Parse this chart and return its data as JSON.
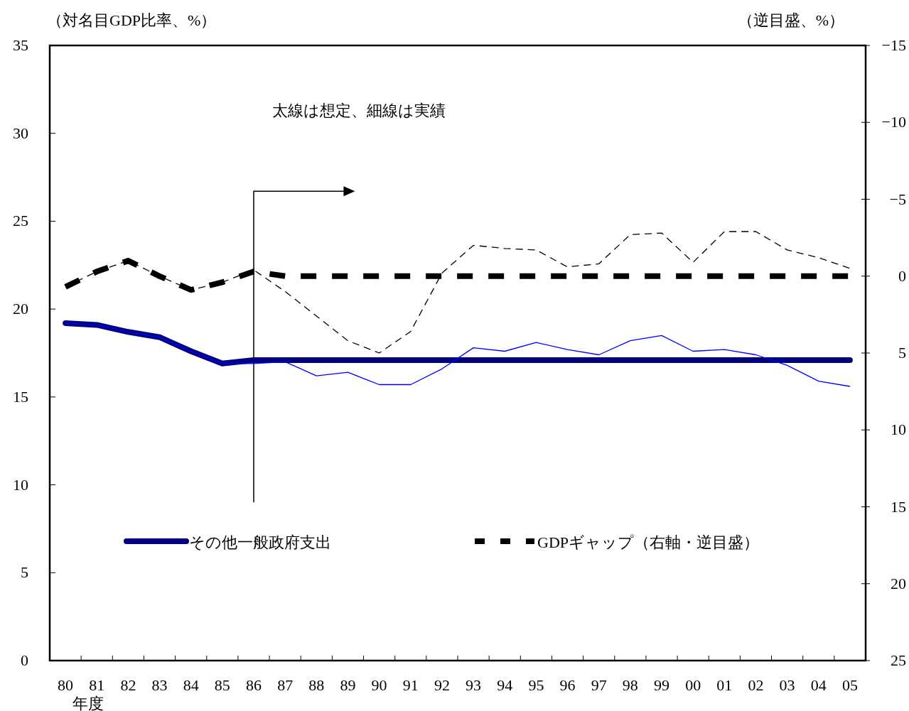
{
  "chart_data": {
    "type": "line",
    "ylabel": "（対名目GDP比率、%）",
    "y2label": "（逆目盛、%）",
    "xlabel": "年度",
    "annotations": [
      "太線は想定、細線は実績"
    ],
    "categories": [
      "80",
      "81",
      "82",
      "83",
      "84",
      "85",
      "86",
      "87",
      "88",
      "89",
      "90",
      "91",
      "92",
      "93",
      "94",
      "95",
      "96",
      "97",
      "98",
      "99",
      "00",
      "01",
      "02",
      "03",
      "04",
      "05"
    ],
    "ylim": [
      0,
      35
    ],
    "yticks": [
      0,
      5,
      10,
      15,
      20,
      25,
      30,
      35
    ],
    "y2lim": [
      25,
      -15
    ],
    "y2ticks": [
      {
        "value": -15,
        "label": "−15"
      },
      {
        "value": -10,
        "label": "−10"
      },
      {
        "value": -5,
        "label": "−5"
      },
      0,
      5,
      10,
      15,
      20,
      25
    ],
    "legend": "bottom",
    "series": [
      {
        "color": "#0000ff",
        "line_style": "solid",
        "values": [
          19.2,
          19.1,
          18.7,
          18.4,
          17.6,
          16.9,
          16.9,
          17.0,
          16.2,
          16.4,
          15.7,
          15.7,
          16.6,
          17.8,
          17.6,
          18.1,
          17.7,
          17.4,
          18.2,
          18.5,
          17.6,
          17.7,
          17.4,
          16.8,
          15.9,
          15.6
        ]
      },
      {
        "name": "その他一般政府支出",
        "color": "#000080",
        "line_style": "solid",
        "values": [
          19.2,
          19.1,
          18.7,
          18.4,
          17.6,
          16.9,
          17.1,
          17.1,
          17.1,
          17.1,
          17.1,
          17.1,
          17.1,
          17.1,
          17.1,
          17.1,
          17.1,
          17.1,
          17.1,
          17.1,
          17.1,
          17.1,
          17.1,
          17.1,
          17.1,
          17.1
        ]
      },
      {
        "axis": "y2",
        "color": "#000000",
        "line_style": "dashed",
        "values": [
          0.7,
          -0.3,
          -1.0,
          0.0,
          0.9,
          0.4,
          -0.4,
          1.0,
          2.6,
          4.2,
          5.0,
          3.6,
          -0.2,
          -2.0,
          -1.8,
          -1.7,
          -0.6,
          -0.8,
          -2.7,
          -2.8,
          -0.9,
          -2.9,
          -2.9,
          -1.7,
          -1.2,
          -0.5
        ]
      },
      {
        "name": "GDPギャップ（右軸・逆目盛）",
        "axis": "y2",
        "color": "#000000",
        "line_style": "dashed",
        "values": [
          0.7,
          -0.3,
          -1.0,
          0.0,
          0.9,
          0.4,
          -0.3,
          0,
          0,
          0,
          0,
          0,
          0,
          0,
          0,
          0,
          0,
          0,
          0,
          0,
          0,
          0,
          0,
          0,
          0,
          0
        ]
      }
    ]
  }
}
